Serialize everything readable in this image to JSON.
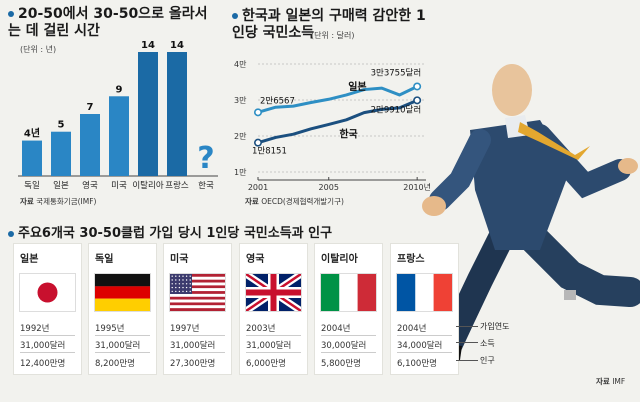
{
  "chart_data": [
    {
      "type": "bar",
      "title": "20-50에서 30-50으로 올라서는 데 걸린 시간",
      "unit_note": "(단위 : 년)",
      "categories": [
        "독일",
        "일본",
        "영국",
        "미국",
        "이탈리아",
        "프랑스",
        "한국"
      ],
      "values": [
        4,
        5,
        7,
        9,
        14,
        14,
        null
      ],
      "value_labels": [
        "4년",
        "5",
        "7",
        "9",
        "14",
        "14",
        "?"
      ],
      "unknown_marker": "?",
      "colors": {
        "bar": "#1b6aa5",
        "bar_highlight": "#1b6aa5",
        "unknown": "#1b6aa5"
      },
      "source": {
        "label": "자료",
        "text": "국제통화기금(IMF)"
      }
    },
    {
      "type": "line",
      "title": "한국과 일본의 구매력 감안한 1인당 국민소득",
      "unit_note": "(단위 : 달러)",
      "y_ticks": [
        "1만",
        "2만",
        "3만",
        "4만"
      ],
      "ylim": [
        10000,
        40000
      ],
      "x_ticks": [
        "2001",
        "2005",
        "2010년"
      ],
      "x_tick_values": [
        2001,
        2005,
        2010
      ],
      "xlim": [
        2001,
        2010.5
      ],
      "series": [
        {
          "name": "일본",
          "color": "#2e8fc4",
          "x": [
            2001,
            2002,
            2003,
            2004,
            2005,
            2006,
            2007,
            2008,
            2009,
            2010
          ],
          "values": [
            26567,
            28000,
            28300,
            29300,
            30200,
            31400,
            32900,
            33300,
            31400,
            33755
          ]
        },
        {
          "name": "한국",
          "color": "#1b4f7f",
          "x": [
            2001,
            2002,
            2003,
            2004,
            2005,
            2006,
            2007,
            2008,
            2009,
            2010
          ],
          "values": [
            18151,
            19600,
            20500,
            22000,
            23200,
            24500,
            26500,
            27400,
            27800,
            29910
          ]
        }
      ],
      "annotations": {
        "japan_start": "2만6567",
        "japan_end": "3만3755달러",
        "korea_start": "1만8151",
        "korea_end": "2만9910달러",
        "japan_label": "일본",
        "korea_label": "한국"
      },
      "source": {
        "label": "자료",
        "text": "OECD(경제협력개발기구)"
      }
    }
  ],
  "section3": {
    "title": "주요6개국 30-50클럽 가입 당시 1인당 국민소득과 인구",
    "countries": [
      {
        "name": "일본",
        "flag": "japan",
        "year": "1992년",
        "income": "31,000달러",
        "population": "12,400만명"
      },
      {
        "name": "독일",
        "flag": "germany",
        "year": "1995년",
        "income": "31,000달러",
        "population": "8,200만명"
      },
      {
        "name": "미국",
        "flag": "usa",
        "year": "1997년",
        "income": "31,000달러",
        "population": "27,300만명"
      },
      {
        "name": "영국",
        "flag": "uk",
        "year": "2003년",
        "income": "31,000달러",
        "population": "6,000만명"
      },
      {
        "name": "이탈리아",
        "flag": "italy",
        "year": "2004년",
        "income": "30,000달러",
        "population": "5,800만명"
      },
      {
        "name": "프랑스",
        "flag": "france",
        "year": "2004년",
        "income": "34,000달러",
        "population": "6,100만명"
      }
    ],
    "legend": {
      "year": "가입연도",
      "income": "소득",
      "population": "인구"
    },
    "source": {
      "label": "자료",
      "text": "IMF"
    }
  }
}
